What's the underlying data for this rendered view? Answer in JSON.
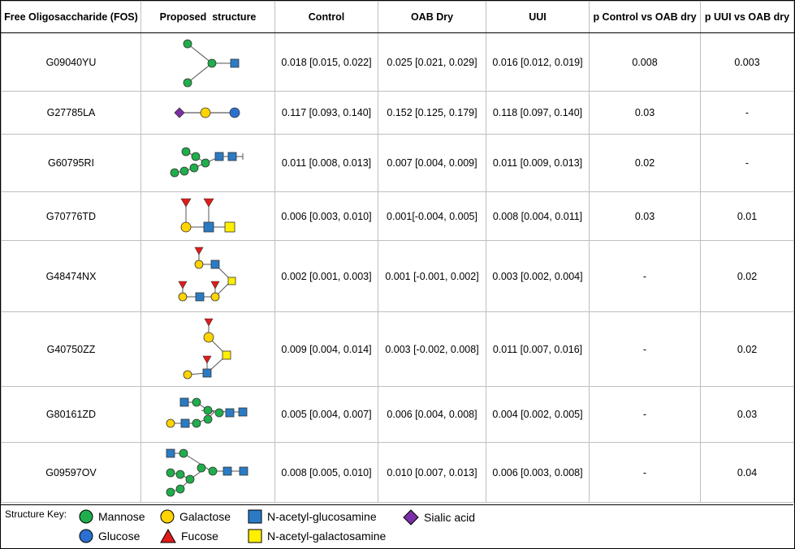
{
  "headers": [
    "Free Oligosaccharide (FOS)",
    "Proposed  structure",
    "Control",
    "OAB Dry",
    "UUI",
    "p Control vs OAB dry",
    "p UUI vs OAB dry"
  ],
  "rows": [
    {
      "fos": "G09040YU",
      "control": "0.018 [0.015, 0.022]",
      "oab": "0.025 [0.021, 0.029]",
      "uui": "0.016 [0.012, 0.019]",
      "p1": "0.008",
      "p2": "0.003"
    },
    {
      "fos": "G27785LA",
      "control": "0.117 [0.093, 0.140]",
      "oab": "0.152 [0.125, 0.179]",
      "uui": "0.118 [0.097, 0.140]",
      "p1": "0.03",
      "p2": "-"
    },
    {
      "fos": "G60795RI",
      "control": "0.011 [0.008, 0.013]",
      "oab": "0.007 [0.004, 0.009]",
      "uui": "0.011 [0.009, 0.013]",
      "p1": "0.02",
      "p2": "-"
    },
    {
      "fos": "G70776TD",
      "control": "0.006 [0.003, 0.010]",
      "oab": "0.001[-0.004, 0.005]",
      "uui": "0.008 [0.004, 0.011]",
      "p1": "0.03",
      "p2": "0.01"
    },
    {
      "fos": "G48474NX",
      "control": "0.002 [0.001, 0.003]",
      "oab": "0.001 [-0.001, 0.002]",
      "uui": "0.003 [0.002, 0.004]",
      "p1": "-",
      "p2": "0.02"
    },
    {
      "fos": "G40750ZZ",
      "control": "0.009 [0.004, 0.014]",
      "oab": "0.003 [-0.002, 0.008]",
      "uui": "0.011 [0.007, 0.016]",
      "p1": "-",
      "p2": "0.02"
    },
    {
      "fos": "G80161ZD",
      "control": "0.005 [0.004, 0.007]",
      "oab": "0.006 [0.004, 0.008]",
      "uui": "0.004 [0.002, 0.005]",
      "p1": "-",
      "p2": "0.03"
    },
    {
      "fos": "G09597OV",
      "control": "0.008 [0.005, 0.010]",
      "oab": "0.010 [0.007, 0.013]",
      "uui": "0.006 [0.003, 0.008]",
      "p1": "-",
      "p2": "0.04"
    }
  ],
  "key": {
    "title": "Structure Key:",
    "items": [
      "Mannose",
      "Galactose",
      "N-acetyl-glucosamine",
      "Sialic acid",
      "Glucose",
      "Fucose",
      "N-acetyl-galactosamine"
    ]
  },
  "colors": {
    "mannose": "#1fae4b",
    "galactose": "#ffd400",
    "glcnac": "#2b7bc4",
    "sialic": "#7b2fa6",
    "glucose": "#2b6fd1",
    "fucose": "#e01b1b",
    "galnac": "#ffef00"
  }
}
